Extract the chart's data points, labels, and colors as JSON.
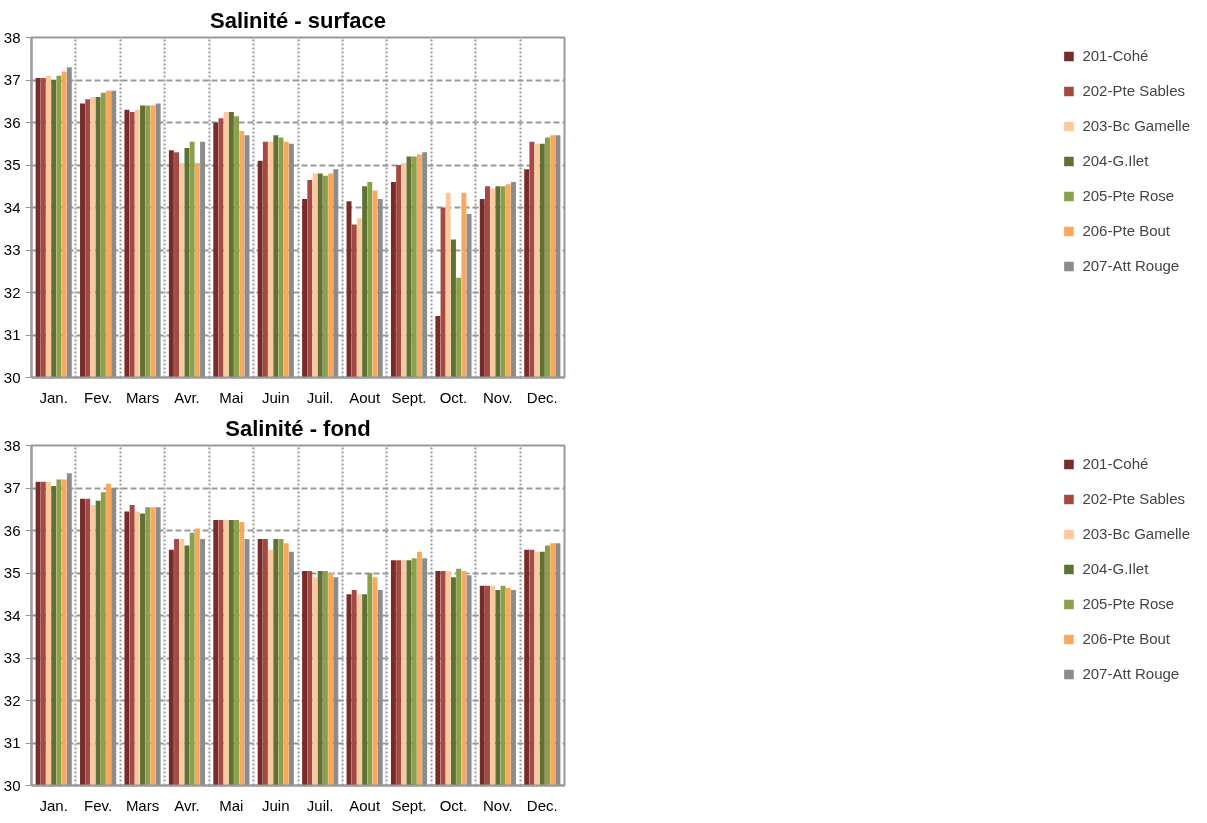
{
  "chart_data": [
    {
      "type": "bar",
      "title": "Salinité - surface",
      "categories": [
        "Jan.",
        "Fev.",
        "Mars",
        "Avr.",
        "Mai",
        "Juin",
        "Juil.",
        "Aout",
        "Sept.",
        "Oct.",
        "Nov.",
        "Dec."
      ],
      "ylim": [
        30,
        38
      ],
      "yticks": [
        30,
        31,
        32,
        33,
        34,
        35,
        36,
        37,
        38
      ],
      "grid": true,
      "legend": "right",
      "series": [
        {
          "name": "201-Cohé",
          "color": "#772c2a",
          "values": [
            37.05,
            36.45,
            36.3,
            35.35,
            36.0,
            35.1,
            34.2,
            34.15,
            34.6,
            31.45,
            34.2,
            34.9
          ]
        },
        {
          "name": "202-Pte Sables",
          "color": "#a64943",
          "values": [
            37.05,
            36.55,
            36.25,
            35.3,
            36.1,
            35.55,
            34.65,
            33.6,
            35.0,
            34.0,
            34.5,
            35.55
          ]
        },
        {
          "name": "203-Bc Gamelle",
          "color": "#fbc99e",
          "values": [
            37.1,
            36.6,
            36.3,
            35.05,
            36.25,
            35.55,
            34.8,
            33.75,
            35.05,
            34.35,
            34.45,
            35.5
          ]
        },
        {
          "name": "204-G.Ilet",
          "color": "#5f7233",
          "values": [
            37.0,
            36.6,
            36.4,
            35.4,
            36.25,
            35.7,
            34.8,
            34.5,
            35.2,
            33.25,
            34.5,
            35.5
          ]
        },
        {
          "name": "205-Pte Rose",
          "color": "#8aa04a",
          "values": [
            37.1,
            36.7,
            36.4,
            35.55,
            36.15,
            35.65,
            34.75,
            34.6,
            35.2,
            32.35,
            34.5,
            35.65
          ]
        },
        {
          "name": "206-Pte Bout",
          "color": "#f9a95c",
          "values": [
            37.2,
            36.75,
            36.4,
            35.05,
            35.8,
            35.55,
            34.8,
            34.4,
            35.25,
            34.35,
            34.55,
            35.7
          ]
        },
        {
          "name": "207-Att Rouge",
          "color": "#8c8c8c",
          "values": [
            37.3,
            36.75,
            36.45,
            35.55,
            35.7,
            35.5,
            34.9,
            34.2,
            35.3,
            33.85,
            34.6,
            35.7
          ]
        }
      ]
    },
    {
      "type": "bar",
      "title": "Salinité - fond",
      "categories": [
        "Jan.",
        "Fev.",
        "Mars",
        "Avr.",
        "Mai",
        "Juin",
        "Juil.",
        "Aout",
        "Sept.",
        "Oct.",
        "Nov.",
        "Dec."
      ],
      "ylim": [
        30,
        38
      ],
      "yticks": [
        30,
        31,
        32,
        33,
        34,
        35,
        36,
        37,
        38
      ],
      "grid": true,
      "legend": "right",
      "series": [
        {
          "name": "201-Cohé",
          "color": "#772c2a",
          "values": [
            37.15,
            36.75,
            36.45,
            35.55,
            36.25,
            35.8,
            35.05,
            34.5,
            35.3,
            35.05,
            34.7,
            35.55
          ]
        },
        {
          "name": "202-Pte Sables",
          "color": "#a64943",
          "values": [
            37.15,
            36.75,
            36.6,
            35.8,
            36.25,
            35.8,
            35.05,
            34.6,
            35.3,
            35.05,
            34.7,
            35.55
          ]
        },
        {
          "name": "203-Bc Gamelle",
          "color": "#fbc99e",
          "values": [
            37.15,
            36.6,
            36.45,
            35.8,
            36.25,
            35.55,
            34.9,
            34.5,
            35.3,
            35.05,
            34.7,
            35.5
          ]
        },
        {
          "name": "204-G.Ilet",
          "color": "#5f7233",
          "values": [
            37.05,
            36.7,
            36.4,
            35.65,
            36.25,
            35.8,
            35.05,
            34.5,
            35.3,
            34.9,
            34.6,
            35.5
          ]
        },
        {
          "name": "205-Pte Rose",
          "color": "#8aa04a",
          "values": [
            37.2,
            36.9,
            36.55,
            35.95,
            36.25,
            35.8,
            35.05,
            35.0,
            35.35,
            35.1,
            34.7,
            35.65
          ]
        },
        {
          "name": "206-Pte Bout",
          "color": "#f9a95c",
          "values": [
            37.2,
            37.1,
            36.55,
            36.05,
            36.2,
            35.7,
            35.0,
            34.9,
            35.5,
            35.05,
            34.65,
            35.7
          ]
        },
        {
          "name": "207-Att Rouge",
          "color": "#8c8c8c",
          "values": [
            37.35,
            37.0,
            36.55,
            35.8,
            35.8,
            35.5,
            34.9,
            34.6,
            35.35,
            34.95,
            34.6,
            35.7
          ]
        }
      ]
    }
  ]
}
